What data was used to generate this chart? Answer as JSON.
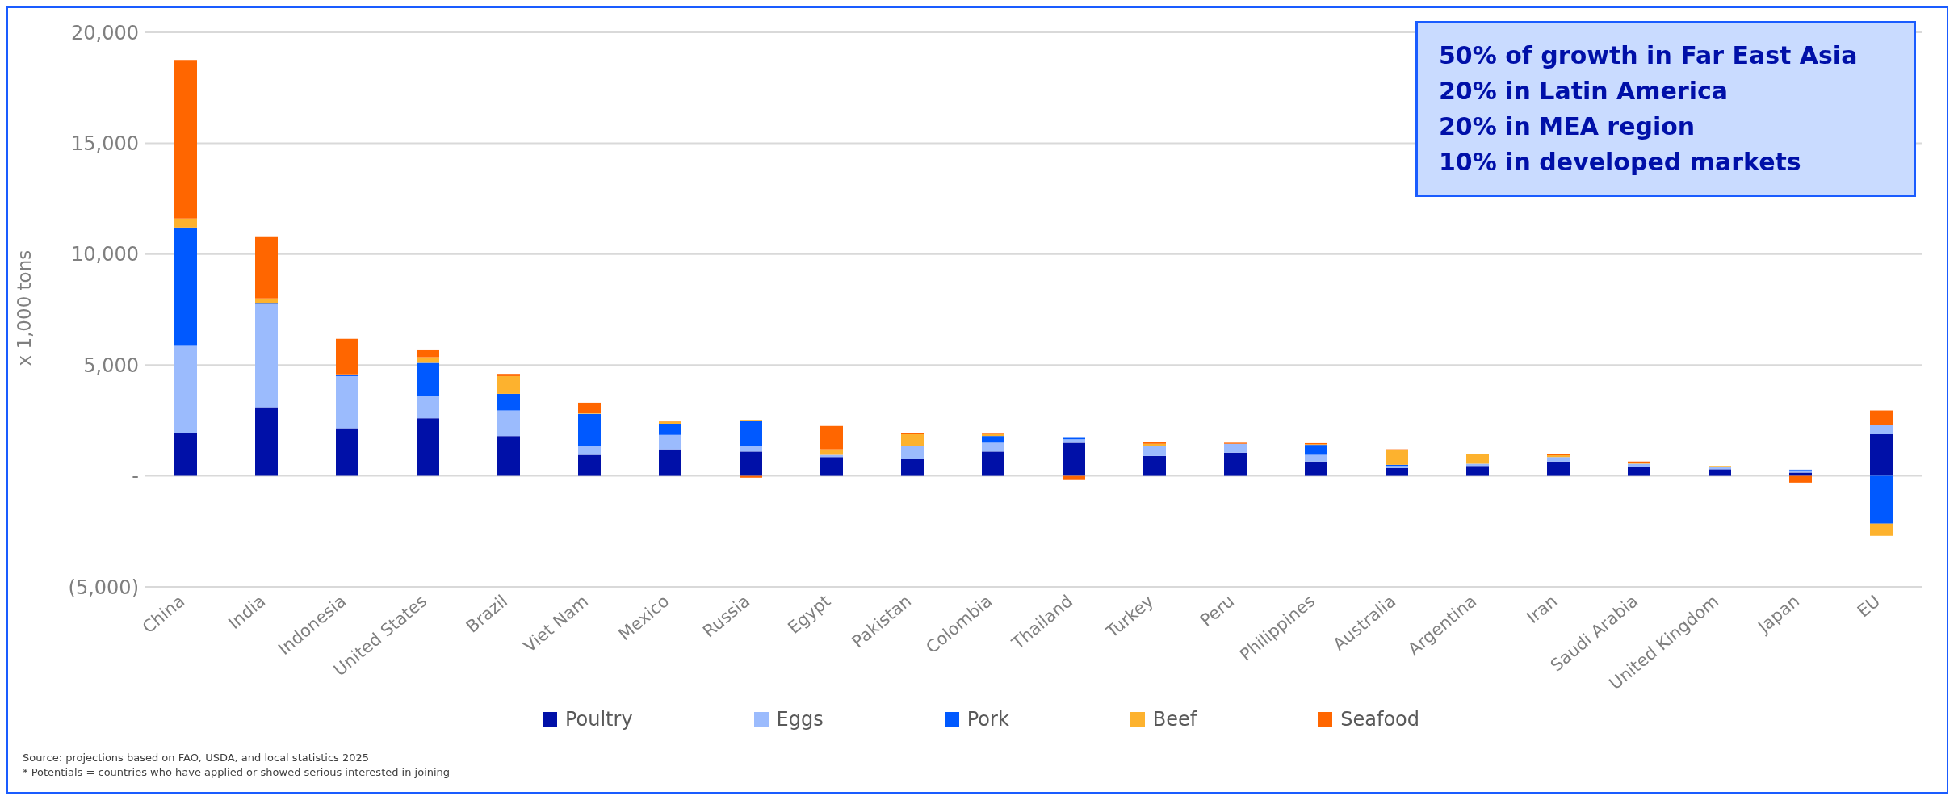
{
  "chart_data": {
    "type": "bar",
    "stacked": true,
    "ylabel": "x 1,000 tons",
    "categories": [
      "China",
      "India",
      "Indonesia",
      "United States",
      "Brazil",
      "Viet Nam",
      "Mexico",
      "Russia",
      "Egypt",
      "Pakistan",
      "Colombia",
      "Thailand",
      "Turkey",
      "Peru",
      "Philippines",
      "Australia",
      "Argentina",
      "Iran",
      "Saudi Arabia",
      "United Kingdom",
      "Japan",
      "EU"
    ],
    "series": [
      {
        "name": "Poultry",
        "color": "#0010a8",
        "values": [
          1950,
          3100,
          2150,
          2600,
          1800,
          950,
          1200,
          1100,
          850,
          750,
          1100,
          1500,
          900,
          1050,
          650,
          350,
          450,
          650,
          400,
          300,
          150,
          1900
        ]
      },
      {
        "name": "Eggs",
        "color": "#9bbbfd",
        "values": [
          3950,
          4650,
          2350,
          1000,
          1150,
          400,
          650,
          250,
          100,
          600,
          400,
          150,
          450,
          400,
          300,
          100,
          100,
          200,
          150,
          100,
          100,
          400
        ]
      },
      {
        "name": "Pork",
        "color": "#0059ff",
        "values": [
          5300,
          50,
          50,
          1500,
          750,
          1450,
          500,
          1150,
          null,
          0,
          300,
          100,
          0,
          0,
          450,
          50,
          null,
          0,
          0,
          0,
          30,
          -2150
        ]
      },
      {
        "name": "Beef",
        "color": "#fdb22e",
        "values": [
          400,
          200,
          30,
          250,
          800,
          50,
          100,
          30,
          250,
          550,
          80,
          0,
          100,
          0,
          30,
          650,
          450,
          80,
          50,
          50,
          0,
          -550
        ]
      },
      {
        "name": "Seafood",
        "color": "#ff6600",
        "values": [
          7150,
          2800,
          1600,
          350,
          100,
          450,
          30,
          -80,
          1050,
          50,
          60,
          -150,
          80,
          50,
          50,
          50,
          0,
          50,
          50,
          0,
          -300,
          650
        ]
      }
    ],
    "ylim": [
      -5000,
      20000
    ],
    "yticks": [
      {
        "value": -5000,
        "label": "(5,000)"
      },
      {
        "value": 0,
        "label": "-"
      },
      {
        "value": 5000,
        "label": "5,000"
      },
      {
        "value": 10000,
        "label": "10,000"
      },
      {
        "value": 15000,
        "label": "15,000"
      },
      {
        "value": 20000,
        "label": "20,000"
      }
    ],
    "grid": "y",
    "legend": "bottom",
    "annotations": [
      "50% of growth in Far East Asia",
      "20% in Latin America",
      "20% in MEA region",
      "10% in developed markets",
      "Source: projections based on  FAO, USDA, and local statistics 2025",
      "* Potentials = countries who have applied or showed serious interested in joining"
    ]
  }
}
